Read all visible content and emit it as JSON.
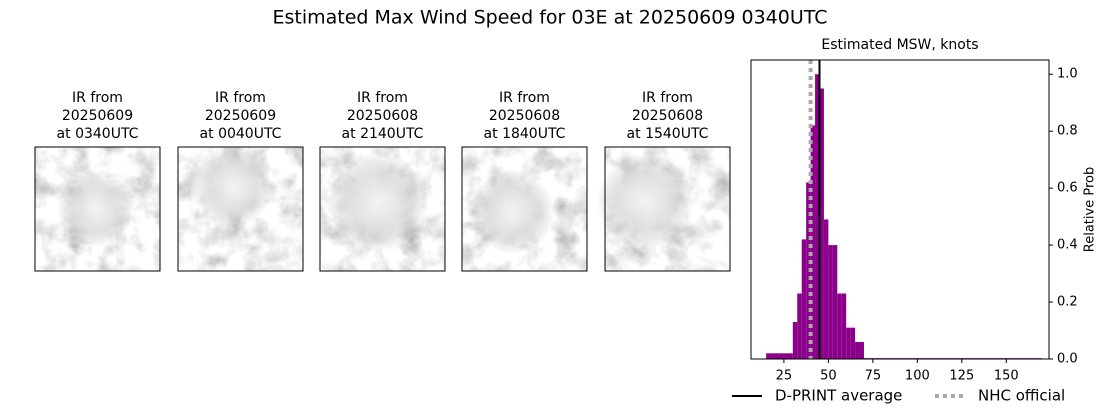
{
  "title": "Estimated Max Wind Speed for 03E at 20250609 0340UTC",
  "panels": [
    {
      "title": [
        "IR from",
        "20250609",
        "at 0340UTC"
      ]
    },
    {
      "title": [
        "IR from",
        "20250609",
        "at 0040UTC"
      ]
    },
    {
      "title": [
        "IR from",
        "20250608",
        "at 2140UTC"
      ]
    },
    {
      "title": [
        "IR from",
        "20250608",
        "at 1840UTC"
      ]
    },
    {
      "title": [
        "IR from",
        "20250608",
        "at 1540UTC"
      ]
    }
  ],
  "chart_data": {
    "type": "histogram",
    "title": "Estimated MSW, knots",
    "y_label": "Relative Prob",
    "bins": [
      15,
      30,
      32.5,
      35,
      37.5,
      40,
      42.5,
      45,
      47.5,
      50,
      52.5,
      55,
      57.5,
      60,
      62.5,
      65,
      67.5,
      70,
      170
    ],
    "values": [
      0.02,
      0.13,
      0.23,
      0.42,
      0.62,
      0.82,
      1.0,
      0.95,
      0.49,
      0.4,
      0.4,
      0.23,
      0.23,
      0.11,
      0.11,
      0.06,
      0.06,
      0.003
    ],
    "color": "#8b008b",
    "xlim": [
      6.5,
      174
    ],
    "xticks": [
      25,
      50,
      75,
      100,
      125,
      150
    ],
    "ylim": [
      0,
      1.05
    ],
    "yticks": [
      {
        "value": 0,
        "label": "0.0"
      },
      0.2,
      0.4,
      0.6,
      0.8,
      {
        "value": 1,
        "label": "1.0"
      }
    ],
    "y_axis_side": "right",
    "lines": [
      {
        "name": "D-PRINT average",
        "x": 45,
        "color": "#000000",
        "style": "solid"
      },
      {
        "name": "NHC official",
        "x": 40,
        "color": "#aaaaaa",
        "style": "dotted"
      }
    ],
    "legend": "lower center"
  }
}
